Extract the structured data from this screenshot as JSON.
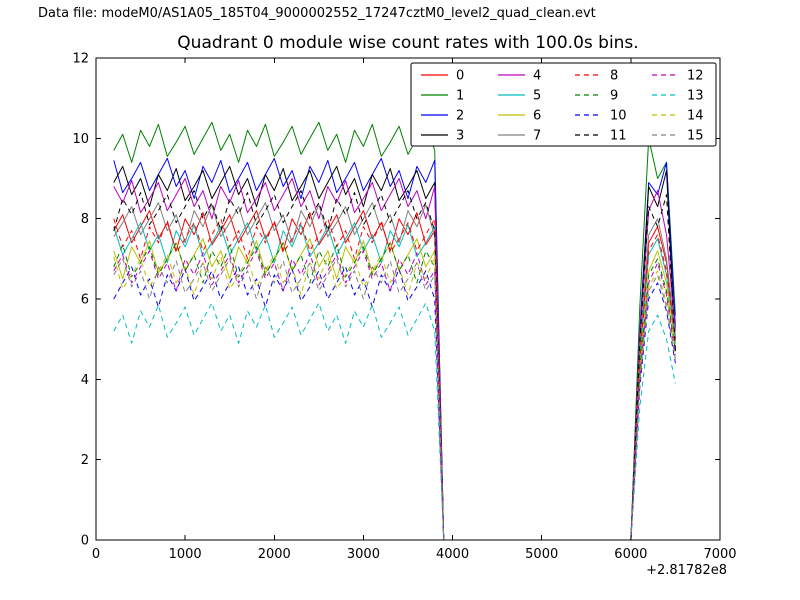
{
  "chart_data": {
    "type": "line",
    "data_file": "Data file: modeM0/AS1A05_185T04_9000002552_17247cztM0_level2_quad_clean.evt",
    "title": "Quadrant 0 module wise count rates with 100.0s bins.",
    "xlabel": "",
    "ylabel": "",
    "x_axis_offset": "+2.81782e8",
    "xlim": [
      0,
      7000
    ],
    "ylim": [
      0,
      12
    ],
    "xticks": [
      0,
      1000,
      2000,
      3000,
      4000,
      5000,
      6000,
      7000
    ],
    "yticks": [
      0,
      2,
      4,
      6,
      8,
      10,
      12
    ],
    "grid": false,
    "legend": {
      "ncol": 4,
      "location": "upper center"
    },
    "x": [
      200,
      300,
      400,
      500,
      600,
      700,
      800,
      900,
      1000,
      1100,
      1200,
      1300,
      1400,
      1500,
      1600,
      1700,
      1800,
      1900,
      2000,
      2100,
      2200,
      2300,
      2400,
      2500,
      2600,
      2700,
      2800,
      2900,
      3000,
      3100,
      3200,
      3300,
      3400,
      3500,
      3600,
      3700,
      3800,
      3900,
      4000,
      4100,
      4200,
      4300,
      4400,
      4500,
      4600,
      4700,
      4800,
      4900,
      5000,
      5100,
      5200,
      5300,
      5400,
      5500,
      5600,
      5700,
      5800,
      5900,
      6000,
      6100,
      6200,
      6300,
      6400,
      6500
    ],
    "series": [
      {
        "name": "0",
        "color": "#ff0000",
        "style": "solid",
        "values": [
          7.7,
          8.1,
          7.4,
          7.8,
          8.2,
          7.5,
          7.9,
          7.2,
          8.0,
          7.6,
          8.15,
          7.35,
          7.7,
          8.1,
          7.4,
          7.8,
          8.2,
          7.5,
          7.9,
          7.2,
          8.0,
          7.6,
          8.15,
          7.35,
          7.7,
          8.1,
          7.4,
          7.8,
          8.2,
          7.5,
          7.9,
          7.2,
          8.0,
          7.6,
          8.15,
          7.35,
          7.7,
          0,
          0,
          0,
          0,
          0,
          0,
          0,
          0,
          0,
          0,
          0,
          0,
          0,
          0,
          0,
          0,
          0,
          0,
          0,
          0,
          0,
          0,
          4.6,
          7.4,
          7.8,
          6.9,
          5.0
        ]
      },
      {
        "name": "1",
        "color": "#008000",
        "style": "solid",
        "values": [
          9.7,
          10.1,
          9.4,
          10.2,
          9.8,
          10.35,
          9.55,
          9.9,
          10.3,
          9.6,
          10.0,
          10.4,
          9.7,
          10.1,
          9.4,
          10.2,
          9.8,
          10.35,
          9.55,
          9.9,
          10.3,
          9.6,
          10.0,
          10.4,
          9.7,
          10.1,
          9.4,
          10.2,
          9.8,
          10.35,
          9.55,
          9.9,
          10.3,
          9.6,
          10.0,
          10.4,
          9.7,
          0,
          0,
          0,
          0,
          0,
          0,
          0,
          0,
          0,
          0,
          0,
          0,
          0,
          0,
          0,
          0,
          0,
          0,
          0,
          0,
          0,
          0,
          5.8,
          10.0,
          9.0,
          9.4,
          5.6
        ]
      },
      {
        "name": "2",
        "color": "#0000ff",
        "style": "solid",
        "values": [
          9.45,
          8.65,
          9.0,
          9.4,
          8.7,
          9.1,
          9.5,
          8.8,
          9.2,
          8.5,
          9.3,
          8.9,
          9.45,
          8.65,
          9.0,
          9.4,
          8.7,
          9.1,
          9.5,
          8.8,
          9.2,
          8.5,
          9.3,
          8.9,
          9.45,
          8.65,
          9.0,
          9.4,
          8.7,
          9.1,
          9.5,
          8.8,
          9.2,
          8.5,
          9.3,
          8.9,
          9.45,
          0,
          0,
          0,
          0,
          0,
          0,
          0,
          0,
          0,
          0,
          0,
          0,
          0,
          0,
          0,
          0,
          0,
          0,
          0,
          0,
          0,
          0,
          5.2,
          8.9,
          8.6,
          9.4,
          5.3
        ]
      },
      {
        "name": "3",
        "color": "#000000",
        "style": "solid",
        "values": [
          8.9,
          9.3,
          8.6,
          9.0,
          8.3,
          9.1,
          8.7,
          9.25,
          8.45,
          8.8,
          9.2,
          8.5,
          8.9,
          9.3,
          8.6,
          9.0,
          8.3,
          9.1,
          8.7,
          9.25,
          8.45,
          8.8,
          9.2,
          8.5,
          8.9,
          9.3,
          8.6,
          9.0,
          8.3,
          9.1,
          8.7,
          9.25,
          8.45,
          8.8,
          9.2,
          8.5,
          8.9,
          0,
          0,
          0,
          0,
          0,
          0,
          0,
          0,
          0,
          0,
          0,
          0,
          0,
          0,
          0,
          0,
          0,
          0,
          0,
          0,
          0,
          0,
          5.0,
          8.8,
          8.3,
          9.2,
          4.7
        ]
      },
      {
        "name": "4",
        "color": "#bf00bf",
        "style": "solid",
        "values": [
          8.8,
          8.4,
          8.95,
          8.15,
          8.5,
          8.9,
          8.2,
          8.6,
          9.0,
          8.3,
          8.7,
          8.0,
          8.8,
          8.4,
          8.95,
          8.15,
          8.5,
          8.9,
          8.2,
          8.6,
          9.0,
          8.3,
          8.7,
          8.0,
          8.8,
          8.4,
          8.95,
          8.15,
          8.5,
          8.9,
          8.2,
          8.6,
          9.0,
          8.3,
          8.7,
          8.0,
          8.8,
          0,
          0,
          0,
          0,
          0,
          0,
          0,
          0,
          0,
          0,
          0,
          0,
          0,
          0,
          0,
          0,
          0,
          0,
          0,
          0,
          0,
          0,
          5.1,
          8.2,
          8.7,
          7.6,
          5.2
        ]
      },
      {
        "name": "5",
        "color": "#00bfbf",
        "style": "solid",
        "values": [
          7.8,
          7.1,
          7.5,
          7.9,
          7.2,
          7.6,
          6.9,
          7.7,
          7.3,
          7.85,
          7.05,
          7.4,
          7.8,
          7.1,
          7.5,
          7.9,
          7.2,
          7.6,
          6.9,
          7.7,
          7.3,
          7.85,
          7.05,
          7.4,
          7.8,
          7.1,
          7.5,
          7.9,
          7.2,
          7.6,
          6.9,
          7.7,
          7.3,
          7.85,
          7.05,
          7.4,
          7.8,
          0,
          0,
          0,
          0,
          0,
          0,
          0,
          0,
          0,
          0,
          0,
          0,
          0,
          0,
          0,
          0,
          0,
          0,
          0,
          0,
          0,
          0,
          4.5,
          7.1,
          7.5,
          6.6,
          4.9
        ]
      },
      {
        "name": "6",
        "color": "#bfbf00",
        "style": "solid",
        "values": [
          7.2,
          6.5,
          7.3,
          6.9,
          7.45,
          6.65,
          7.0,
          7.4,
          6.7,
          7.1,
          7.5,
          6.8,
          7.2,
          6.5,
          7.3,
          6.9,
          7.45,
          6.65,
          7.0,
          7.4,
          6.7,
          7.1,
          7.5,
          6.8,
          7.2,
          6.5,
          7.3,
          6.9,
          7.45,
          6.65,
          7.0,
          7.4,
          6.7,
          7.1,
          7.5,
          6.8,
          7.2,
          0,
          0,
          0,
          0,
          0,
          0,
          0,
          0,
          0,
          0,
          0,
          0,
          0,
          0,
          0,
          0,
          0,
          0,
          0,
          0,
          0,
          0,
          4.2,
          6.7,
          7.2,
          6.4,
          4.8
        ]
      },
      {
        "name": "7",
        "color": "#808080",
        "style": "solid",
        "values": [
          7.55,
          7.9,
          8.3,
          7.6,
          8.0,
          8.4,
          7.7,
          8.1,
          7.4,
          8.2,
          7.8,
          8.35,
          7.55,
          7.9,
          8.3,
          7.6,
          8.0,
          8.4,
          7.7,
          8.1,
          7.4,
          8.2,
          7.8,
          8.35,
          7.55,
          7.9,
          8.3,
          7.6,
          8.0,
          8.4,
          7.7,
          8.1,
          7.4,
          8.2,
          7.8,
          8.35,
          7.55,
          0,
          0,
          0,
          0,
          0,
          0,
          0,
          0,
          0,
          0,
          0,
          0,
          0,
          0,
          0,
          0,
          0,
          0,
          0,
          0,
          0,
          0,
          4.8,
          7.6,
          8.0,
          7.0,
          5.1
        ]
      },
      {
        "name": "8",
        "color": "#ff0000",
        "style": "dashed",
        "values": [
          8.0,
          7.3,
          7.7,
          7.0,
          7.8,
          7.4,
          7.95,
          7.15,
          7.5,
          7.9,
          7.2,
          7.6,
          8.0,
          7.3,
          7.7,
          7.0,
          7.8,
          7.4,
          7.95,
          7.15,
          7.5,
          7.9,
          7.2,
          7.6,
          8.0,
          7.3,
          7.7,
          7.0,
          7.8,
          7.4,
          7.95,
          7.15,
          7.5,
          7.9,
          7.2,
          7.6,
          8.0,
          0,
          0,
          0,
          0,
          0,
          0,
          0,
          0,
          0,
          0,
          0,
          0,
          0,
          0,
          0,
          0,
          0,
          0,
          0,
          0,
          0,
          0,
          4.5,
          7.2,
          7.6,
          6.7,
          5.0
        ]
      },
      {
        "name": "9",
        "color": "#008000",
        "style": "dashed",
        "values": [
          6.8,
          7.35,
          6.55,
          6.9,
          7.3,
          6.6,
          7.0,
          7.4,
          6.7,
          7.1,
          6.4,
          7.2,
          6.8,
          7.35,
          6.55,
          6.9,
          7.3,
          6.6,
          7.0,
          7.4,
          6.7,
          7.1,
          6.4,
          7.2,
          6.8,
          7.35,
          6.55,
          6.9,
          7.3,
          6.6,
          7.0,
          7.4,
          6.7,
          7.1,
          6.4,
          7.2,
          6.8,
          0,
          0,
          0,
          0,
          0,
          0,
          0,
          0,
          0,
          0,
          0,
          0,
          0,
          0,
          0,
          0,
          0,
          0,
          0,
          0,
          0,
          0,
          4.2,
          6.6,
          7.0,
          6.2,
          4.7
        ]
      },
      {
        "name": "10",
        "color": "#0000ff",
        "style": "dashed",
        "values": [
          6.0,
          6.4,
          6.8,
          6.1,
          6.5,
          5.8,
          6.6,
          6.2,
          6.75,
          5.95,
          6.3,
          6.7,
          6.0,
          6.4,
          6.8,
          6.1,
          6.5,
          5.8,
          6.6,
          6.2,
          6.75,
          5.95,
          6.3,
          6.7,
          6.0,
          6.4,
          6.8,
          6.1,
          6.5,
          5.8,
          6.6,
          6.2,
          6.75,
          5.95,
          6.3,
          6.7,
          6.0,
          0,
          0,
          0,
          0,
          0,
          0,
          0,
          0,
          0,
          0,
          0,
          0,
          0,
          0,
          0,
          0,
          0,
          0,
          0,
          0,
          0,
          0,
          3.8,
          6.0,
          6.4,
          5.7,
          4.4
        ]
      },
      {
        "name": "11",
        "color": "#000000",
        "style": "dashed",
        "values": [
          7.7,
          8.5,
          8.1,
          8.65,
          7.85,
          8.2,
          8.6,
          7.9,
          8.3,
          8.7,
          8.0,
          8.4,
          7.7,
          8.5,
          8.1,
          8.65,
          7.85,
          8.2,
          8.6,
          7.9,
          8.3,
          8.7,
          8.0,
          8.4,
          7.7,
          8.5,
          8.1,
          8.65,
          7.85,
          8.2,
          8.6,
          7.9,
          8.3,
          8.7,
          8.0,
          8.4,
          7.7,
          0,
          0,
          0,
          0,
          0,
          0,
          0,
          0,
          0,
          0,
          0,
          0,
          0,
          0,
          0,
          0,
          0,
          0,
          0,
          0,
          0,
          0,
          4.9,
          8.3,
          7.8,
          8.6,
          4.7
        ]
      },
      {
        "name": "12",
        "color": "#bf00bf",
        "style": "dashed",
        "values": [
          6.7,
          7.1,
          6.4,
          6.8,
          7.2,
          6.5,
          6.9,
          6.2,
          7.0,
          6.6,
          7.15,
          6.35,
          6.7,
          7.1,
          6.4,
          6.8,
          7.2,
          6.5,
          6.9,
          6.2,
          7.0,
          6.6,
          7.15,
          6.35,
          6.7,
          7.1,
          6.4,
          6.8,
          7.2,
          6.5,
          6.9,
          6.2,
          7.0,
          6.6,
          7.15,
          6.35,
          6.7,
          0,
          0,
          0,
          0,
          0,
          0,
          0,
          0,
          0,
          0,
          0,
          0,
          0,
          0,
          0,
          0,
          0,
          0,
          0,
          0,
          0,
          0,
          4.0,
          6.4,
          6.9,
          6.1,
          4.6
        ]
      },
      {
        "name": "13",
        "color": "#00bfbf",
        "style": "dashed",
        "values": [
          5.2,
          5.6,
          4.9,
          5.7,
          5.3,
          5.85,
          5.05,
          5.4,
          5.8,
          5.1,
          5.5,
          5.9,
          5.2,
          5.6,
          4.9,
          5.7,
          5.3,
          5.85,
          5.05,
          5.4,
          5.8,
          5.1,
          5.5,
          5.9,
          5.2,
          5.6,
          4.9,
          5.7,
          5.3,
          5.85,
          5.05,
          5.4,
          5.8,
          5.1,
          5.5,
          5.9,
          5.2,
          0,
          0,
          0,
          0,
          0,
          0,
          0,
          0,
          0,
          0,
          0,
          0,
          0,
          0,
          0,
          0,
          0,
          0,
          0,
          0,
          0,
          0,
          3.3,
          5.2,
          5.6,
          5.0,
          3.9
        ]
      },
      {
        "name": "14",
        "color": "#bfbf00",
        "style": "dashed",
        "values": [
          7.05,
          6.25,
          6.6,
          7.0,
          6.3,
          6.7,
          7.1,
          6.4,
          6.8,
          6.1,
          6.9,
          6.5,
          7.05,
          6.25,
          6.6,
          7.0,
          6.3,
          6.7,
          7.1,
          6.4,
          6.8,
          6.1,
          6.9,
          6.5,
          7.05,
          6.25,
          6.6,
          7.0,
          6.3,
          6.7,
          7.1,
          6.4,
          6.8,
          6.1,
          6.9,
          6.5,
          7.05,
          0,
          0,
          0,
          0,
          0,
          0,
          0,
          0,
          0,
          0,
          0,
          0,
          0,
          0,
          0,
          0,
          0,
          0,
          0,
          0,
          0,
          0,
          4.0,
          6.3,
          6.7,
          5.9,
          4.5
        ]
      },
      {
        "name": "15",
        "color": "#808080",
        "style": "dashed",
        "values": [
          6.6,
          7.0,
          6.3,
          6.7,
          6.0,
          6.8,
          6.4,
          6.95,
          6.15,
          6.5,
          6.9,
          6.2,
          6.6,
          7.0,
          6.3,
          6.7,
          6.0,
          6.8,
          6.4,
          6.95,
          6.15,
          6.5,
          6.9,
          6.2,
          6.6,
          7.0,
          6.3,
          6.7,
          6.0,
          6.8,
          6.4,
          6.95,
          6.15,
          6.5,
          6.9,
          6.2,
          6.6,
          0,
          0,
          0,
          0,
          0,
          0,
          0,
          0,
          0,
          0,
          0,
          0,
          0,
          0,
          0,
          0,
          0,
          0,
          0,
          0,
          0,
          0,
          3.9,
          6.2,
          6.6,
          5.8,
          4.5
        ]
      }
    ]
  }
}
